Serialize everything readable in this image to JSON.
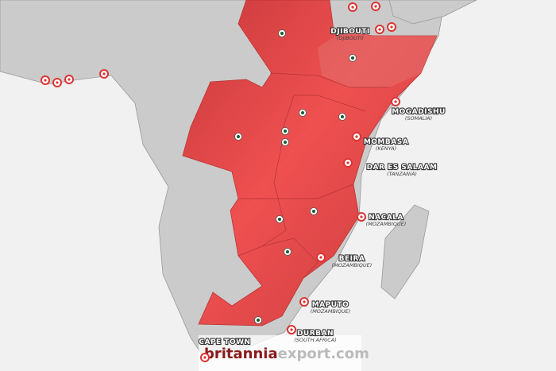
{
  "ports": [
    {
      "name": "DJIBOUTI",
      "country": "(DJIBOUTI)"
    },
    {
      "name": "MOGADISHU",
      "country": "(SOMALIA)"
    },
    {
      "name": "MOMBASA",
      "country": "(KENYA)"
    },
    {
      "name": "DAR ES SALAAM",
      "country": "(TANZANIA)"
    },
    {
      "name": "NACALA",
      "country": "(MOZAMBIQUE)"
    },
    {
      "name": "BEIRA",
      "country": "(MOZAMBIQUE)"
    },
    {
      "name": "MAPUTO",
      "country": "(MOZAMBIQUE)"
    },
    {
      "name": "DURBAN",
      "country": "(SOUTH AFRICA)"
    },
    {
      "name": "CAPE TOWN"
    }
  ],
  "watermark": {
    "brand": "britannia",
    "domain": "export.com"
  }
}
